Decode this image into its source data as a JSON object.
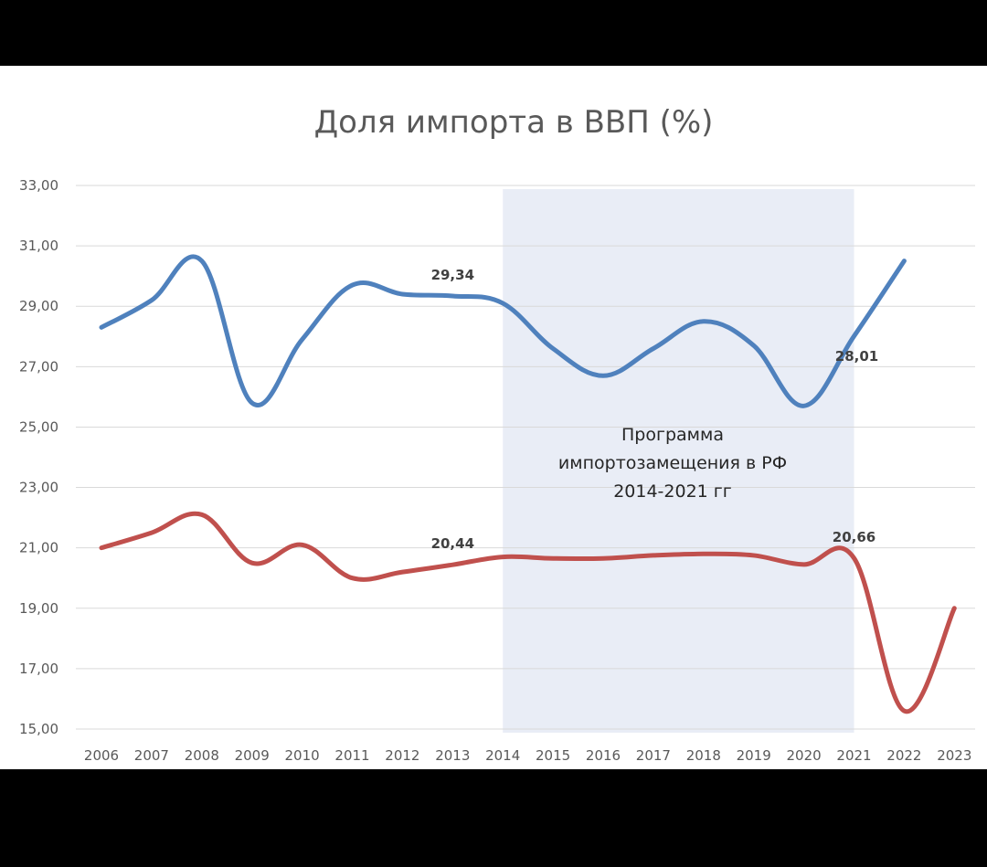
{
  "chart_data": {
    "type": "line",
    "title": "Доля импорта в ВВП (%)",
    "xlabel": "",
    "ylabel": "",
    "ylim": [
      15,
      33
    ],
    "yticks": [
      "15,00",
      "17,00",
      "19,00",
      "21,00",
      "23,00",
      "25,00",
      "27,00",
      "29,00",
      "31,00",
      "33,00"
    ],
    "categories": [
      "2006",
      "2007",
      "2008",
      "2009",
      "2010",
      "2011",
      "2012",
      "2013",
      "2014",
      "2015",
      "2016",
      "2017",
      "2018",
      "2019",
      "2020",
      "2021",
      "2022",
      "2023"
    ],
    "grid": true,
    "legend": "none",
    "series": [
      {
        "color": "#4f81bd",
        "values": [
          28.3,
          29.2,
          30.5,
          25.8,
          27.9,
          29.7,
          29.4,
          29.34,
          29.1,
          27.6,
          26.7,
          27.6,
          28.5,
          27.7,
          25.7,
          28.01,
          30.5,
          null
        ]
      },
      {
        "color": "#c0504d",
        "values": [
          21.0,
          21.5,
          22.1,
          20.5,
          21.1,
          20.0,
          20.2,
          20.44,
          20.7,
          20.65,
          20.65,
          20.75,
          20.8,
          20.75,
          20.45,
          20.66,
          15.6,
          19.0
        ]
      }
    ],
    "data_labels": [
      {
        "series": 0,
        "index": 7,
        "text": "29,34"
      },
      {
        "series": 0,
        "index": 15,
        "text": "28,01"
      },
      {
        "series": 1,
        "index": 7,
        "text": "20,44"
      },
      {
        "series": 1,
        "index": 15,
        "text": "20,66"
      }
    ],
    "annotation": {
      "from": "2014",
      "to": "2021",
      "color": "#e9edf6",
      "lines": [
        "Программа",
        "импортозамещения в РФ",
        "2014-2021 гг"
      ]
    }
  }
}
